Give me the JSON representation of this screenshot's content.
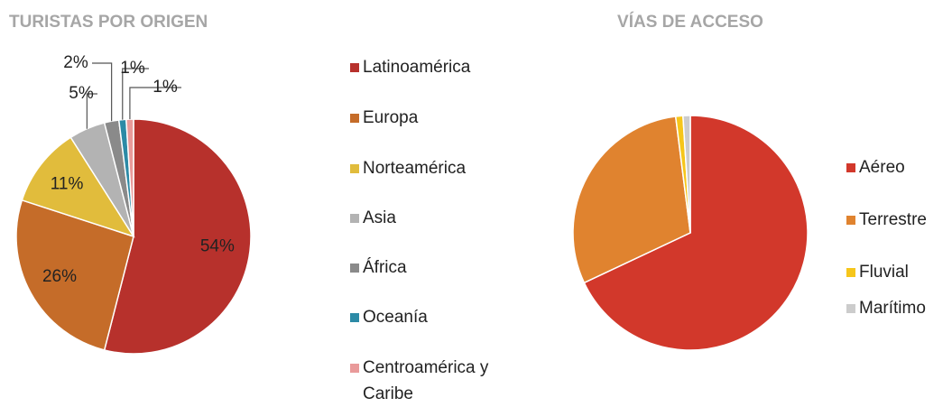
{
  "chart_data": [
    {
      "type": "pie",
      "title": "TURISTAS POR ORIGEN",
      "categories": [
        "Latinoamérica",
        "Europa",
        "Norteamérica",
        "Asia",
        "África",
        "Oceanía",
        "Centroamérica y Caribe"
      ],
      "values": [
        54,
        26,
        11,
        5,
        2,
        1,
        1
      ],
      "value_labels": [
        "54%",
        "26%",
        "11%",
        "5%",
        "2%",
        "1%",
        "1%"
      ],
      "colors": [
        "#b7312c",
        "#c56c29",
        "#e1bc3c",
        "#b3b3b3",
        "#8a8a8a",
        "#2c8aa6",
        "#e99a9a"
      ]
    },
    {
      "type": "pie",
      "title": "VÍAS DE ACCESO",
      "categories": [
        "Aéreo",
        "Terrestre",
        "Fluvial",
        "Marítimo"
      ],
      "values": [
        68,
        30,
        1,
        1
      ],
      "colors": [
        "#d2382b",
        "#e0832f",
        "#f6c61b",
        "#cccccc"
      ]
    }
  ]
}
